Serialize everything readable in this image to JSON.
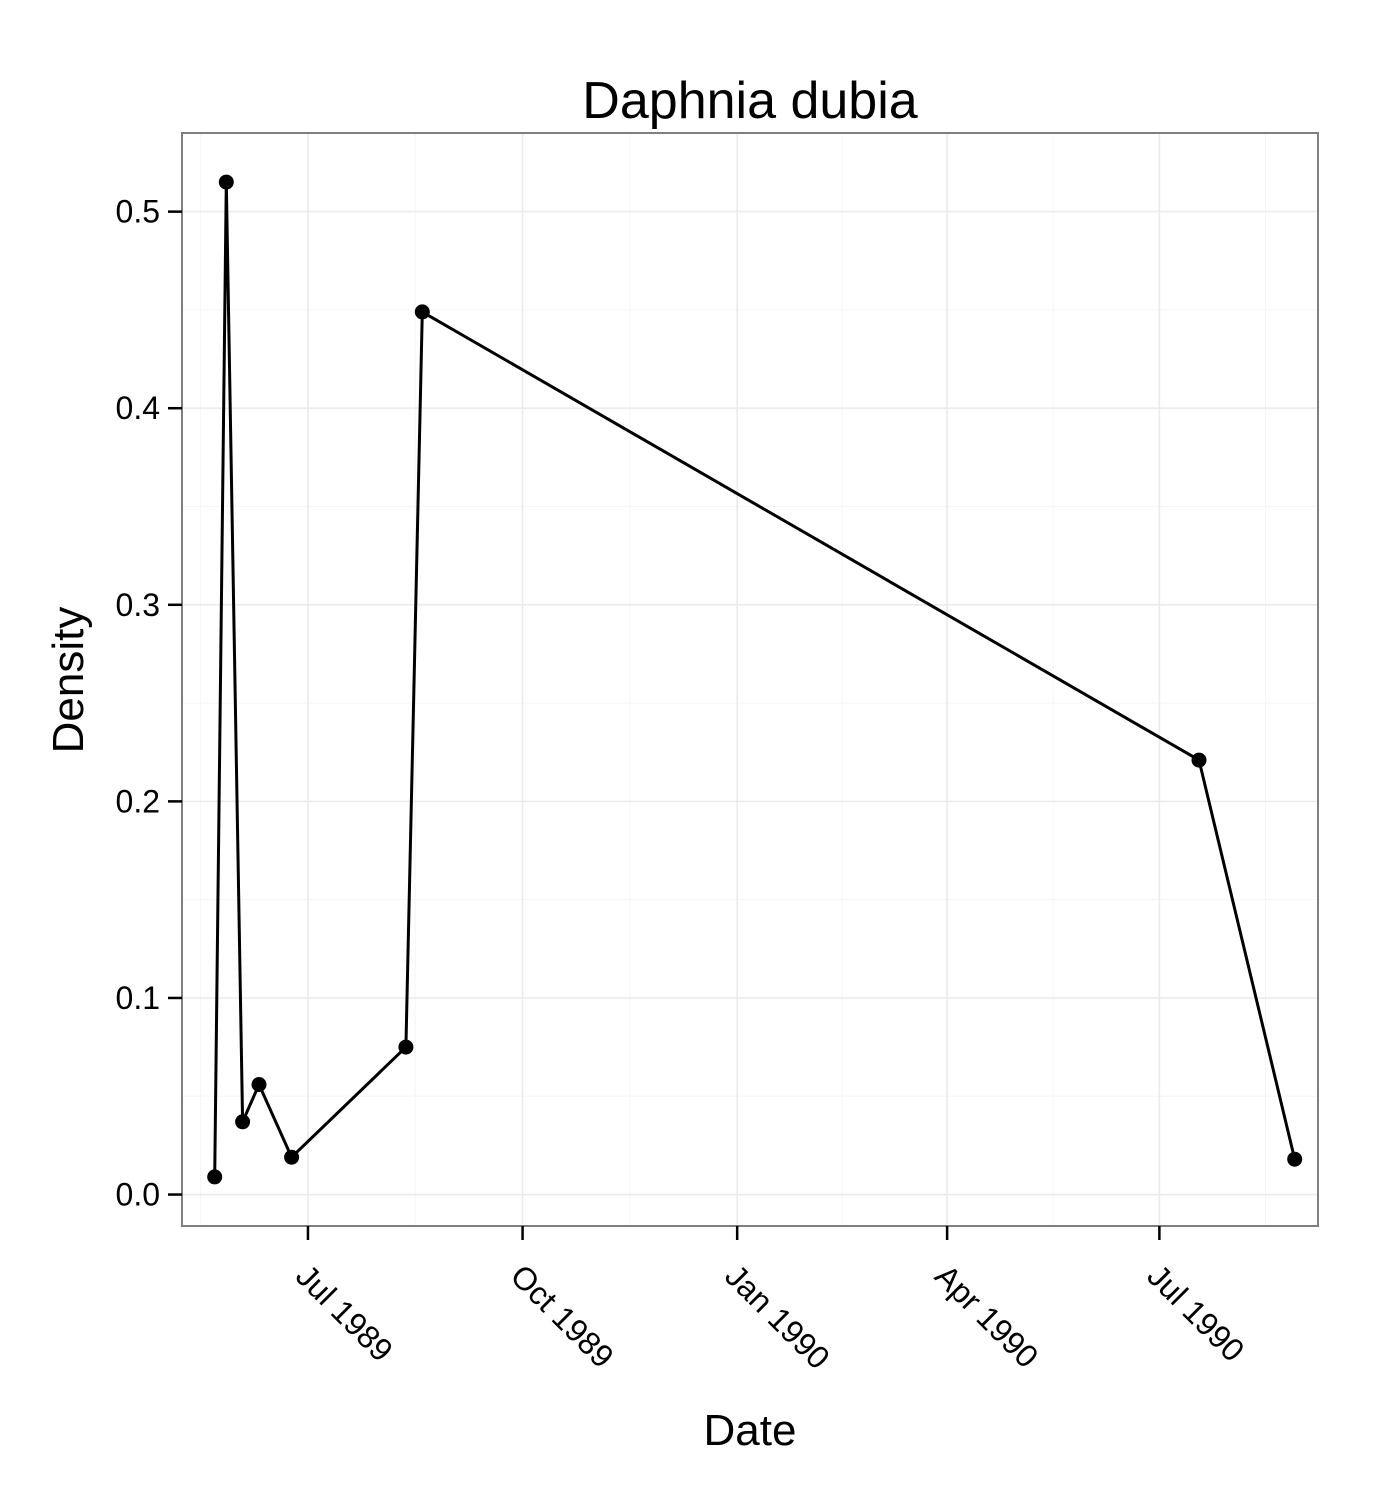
{
  "chart_data": {
    "type": "line",
    "title": "Daphnia dubia",
    "xlabel": "Date",
    "ylabel": "Density",
    "x_ticks": [
      {
        "date": "1989-07-01",
        "label": "Jul 1989"
      },
      {
        "date": "1989-10-01",
        "label": "Oct 1989"
      },
      {
        "date": "1990-01-01",
        "label": "Jan 1990"
      },
      {
        "date": "1990-04-01",
        "label": "Apr 1990"
      },
      {
        "date": "1990-07-01",
        "label": "Jul 1990"
      }
    ],
    "y_ticks": [
      {
        "value": 0.0,
        "label": "0.0"
      },
      {
        "value": 0.1,
        "label": "0.1"
      },
      {
        "value": 0.2,
        "label": "0.2"
      },
      {
        "value": 0.3,
        "label": "0.3"
      },
      {
        "value": 0.4,
        "label": "0.4"
      },
      {
        "value": 0.5,
        "label": "0.5"
      }
    ],
    "xlim": [
      "1989-05-08",
      "1990-09-07"
    ],
    "ylim": [
      -0.016,
      0.54
    ],
    "grid": true,
    "legend": "none",
    "series": [
      {
        "color": "#000000",
        "points": [
          {
            "x": "1989-05-22",
            "y": 0.009
          },
          {
            "x": "1989-05-27",
            "y": 0.515
          },
          {
            "x": "1989-06-03",
            "y": 0.037
          },
          {
            "x": "1989-06-10",
            "y": 0.056
          },
          {
            "x": "1989-06-24",
            "y": 0.019
          },
          {
            "x": "1989-08-12",
            "y": 0.075
          },
          {
            "x": "1989-08-19",
            "y": 0.449
          },
          {
            "x": "1990-07-18",
            "y": 0.221
          },
          {
            "x": "1990-08-28",
            "y": 0.018
          }
        ]
      }
    ]
  }
}
